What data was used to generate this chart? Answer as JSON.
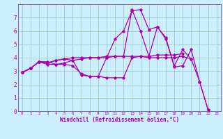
{
  "xlabel": "Windchill (Refroidissement éolien,°C)",
  "bg_color": "#cceeff",
  "grid_color": "#99cccc",
  "line_color": "#aa00aa",
  "spine_color": "#886688",
  "xlim": [
    -0.5,
    23.5
  ],
  "ylim": [
    0,
    8
  ],
  "xticks": [
    0,
    1,
    2,
    3,
    4,
    5,
    6,
    7,
    8,
    9,
    10,
    11,
    12,
    13,
    14,
    15,
    16,
    17,
    18,
    19,
    20,
    21,
    22,
    23
  ],
  "yticks": [
    0,
    1,
    2,
    3,
    4,
    5,
    6,
    7
  ],
  "series": [
    {
      "x": [
        0,
        1,
        2,
        3,
        4,
        5,
        6,
        7,
        8,
        9,
        10,
        11,
        12,
        13,
        14,
        15,
        16,
        17,
        18,
        19,
        20
      ],
      "y": [
        2.9,
        3.2,
        3.7,
        3.7,
        3.5,
        3.5,
        3.4,
        2.8,
        2.6,
        2.6,
        2.5,
        2.5,
        2.5,
        4.0,
        4.1,
        4.0,
        4.0,
        4.0,
        4.0,
        4.1,
        3.9
      ]
    },
    {
      "x": [
        0,
        1,
        2,
        3,
        4,
        5,
        6,
        7,
        8,
        9,
        10,
        11,
        12,
        13,
        14,
        15,
        16,
        17,
        18,
        19,
        20,
        21,
        22
      ],
      "y": [
        2.9,
        3.2,
        3.7,
        3.5,
        3.5,
        3.6,
        3.8,
        3.9,
        4.0,
        4.0,
        4.0,
        5.4,
        6.0,
        7.5,
        7.6,
        6.1,
        6.3,
        5.5,
        3.3,
        3.4,
        4.6,
        2.2,
        0.1
      ]
    },
    {
      "x": [
        0,
        1,
        2,
        3,
        4,
        5,
        6,
        7,
        8,
        9,
        10,
        11,
        12,
        13,
        14,
        15,
        16,
        17,
        18,
        19
      ],
      "y": [
        2.9,
        3.2,
        3.7,
        3.6,
        3.8,
        3.9,
        4.0,
        4.0,
        4.0,
        4.0,
        4.1,
        4.1,
        4.1,
        4.1,
        4.1,
        4.1,
        4.2,
        4.2,
        4.2,
        4.3
      ]
    },
    {
      "x": [
        0,
        1,
        2,
        3,
        4,
        5,
        6,
        7,
        8,
        9,
        10,
        11,
        12,
        13,
        14,
        15,
        16,
        17,
        18,
        19,
        20,
        21,
        22
      ],
      "y": [
        2.9,
        3.2,
        3.7,
        3.6,
        3.8,
        3.9,
        3.8,
        2.7,
        2.6,
        2.6,
        4.0,
        4.1,
        4.1,
        7.6,
        6.0,
        4.1,
        6.3,
        5.4,
        3.4,
        4.6,
        3.9,
        2.2,
        0.1
      ]
    }
  ]
}
